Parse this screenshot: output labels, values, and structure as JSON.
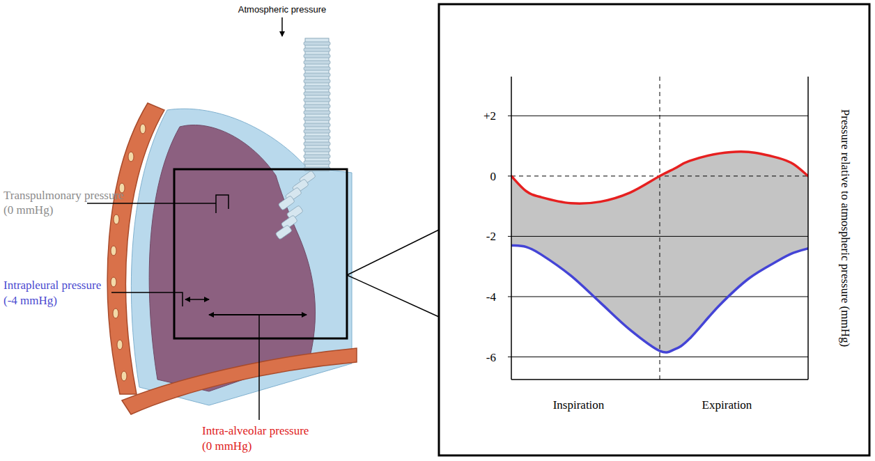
{
  "diagram": {
    "top_label": "Atmospheric pressure",
    "transpulmonary": {
      "title": "Transpulmonary pressure",
      "value": "(0 mmHg)"
    },
    "intrapleural": {
      "title": "Intrapleural pressure",
      "value": "(-4 mmHg)"
    },
    "intra_alveolar": {
      "title": "Intra-alveolar pressure",
      "value": "(0 mmHg)"
    }
  },
  "chart_data": {
    "type": "line",
    "y_label": "Pressure relative to atmospheric pressure (mmHg)",
    "phase_labels": [
      "Inspiration",
      "Expiration"
    ],
    "phase_boundary": 0.5,
    "x": [
      0,
      0.05,
      0.1,
      0.2,
      0.3,
      0.4,
      0.5,
      0.55,
      0.6,
      0.7,
      0.8,
      0.9,
      0.95,
      1
    ],
    "xlim": [
      0,
      1
    ],
    "ylim": [
      -6.75,
      3.3
    ],
    "yticks": [
      -6,
      -4,
      -2,
      0,
      {
        "value": 2,
        "label": "+2"
      }
    ],
    "grid": true,
    "tick_labels": "y",
    "series": [
      {
        "color": "#e62020",
        "values": [
          0,
          -0.5,
          -0.7,
          -0.9,
          -0.85,
          -0.55,
          0,
          0.25,
          0.5,
          0.75,
          0.8,
          0.6,
          0.4,
          0
        ]
      },
      {
        "color": "#4444d6",
        "values": [
          -2.3,
          -2.35,
          -2.6,
          -3.3,
          -4.2,
          -5.1,
          -5.8,
          -5.75,
          -5.4,
          -4.3,
          -3.4,
          -2.8,
          -2.55,
          -2.4
        ]
      }
    ]
  }
}
